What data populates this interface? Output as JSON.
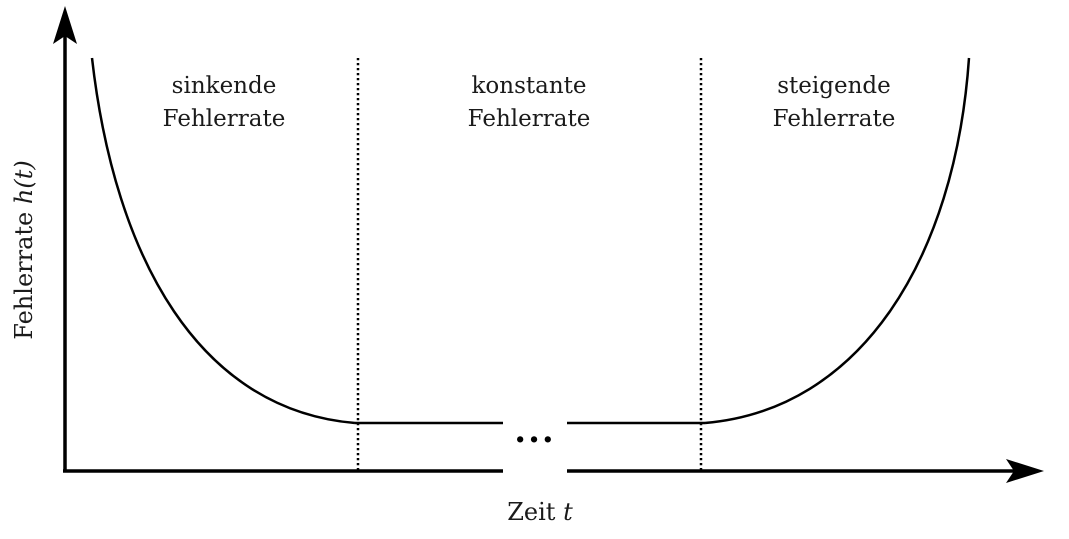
{
  "diagram": {
    "regions": [
      {
        "line1": "sinkende",
        "line2": "Fehlerrate"
      },
      {
        "line1": "konstante",
        "line2": "Fehlerrate"
      },
      {
        "line1": "steigende",
        "line2": "Fehlerrate"
      }
    ],
    "x_axis": {
      "label": "Zeit",
      "var": "t"
    },
    "y_axis": {
      "label": "Fehlerrate",
      "var": "h(t)"
    },
    "ellipsis": "···"
  }
}
